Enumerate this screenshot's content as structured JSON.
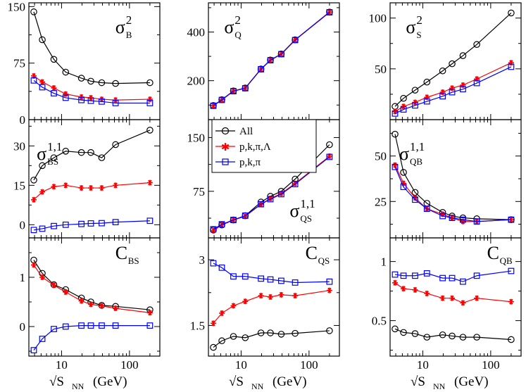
{
  "figure": {
    "xlabel_prefix": "√S",
    "xlabel_sub": "NN",
    "xlabel_unit": "(GeV)"
  },
  "legend": {
    "items": [
      {
        "label": "All",
        "color": "#000000",
        "marker": "circle"
      },
      {
        "label": "p,k,π,Λ",
        "color": "#ff0000",
        "marker": "star"
      },
      {
        "label": "p,k,π",
        "color": "#0000ff",
        "marker": "square"
      }
    ]
  },
  "chart_data": [
    {
      "type": "line",
      "id": "sigma2B",
      "title": "σ²_B",
      "label_main": "σ",
      "label_sub": "B",
      "label_sup": "2",
      "xscale": "log",
      "xlim": [
        3.3,
        280
      ],
      "ylim": [
        0,
        155
      ],
      "xticks": [
        10,
        100
      ],
      "yticks": [
        0,
        75,
        150
      ],
      "x": [
        3.9,
        5.2,
        7.7,
        11.5,
        19.6,
        27,
        39,
        62.4,
        200
      ],
      "series": [
        {
          "name": "All",
          "values": [
            143,
            106,
            80,
            63,
            55,
            51,
            49,
            48,
            49
          ]
        },
        {
          "name": "p,k,π,Λ",
          "values": [
            58,
            50,
            42,
            34,
            30,
            29,
            27,
            26,
            27
          ]
        },
        {
          "name": "p,k,π",
          "values": [
            52,
            43,
            35,
            29,
            26,
            25,
            24,
            22,
            22
          ]
        }
      ]
    },
    {
      "type": "line",
      "id": "sigma2Q",
      "title": "σ²_Q",
      "label_main": "σ",
      "label_sub": "Q",
      "label_sup": "2",
      "xscale": "log",
      "xlim": [
        3.3,
        280
      ],
      "ylim": [
        40,
        520
      ],
      "xticks": [
        10,
        100
      ],
      "yticks": [
        200,
        400
      ],
      "x": [
        3.9,
        5.2,
        7.7,
        11.5,
        19.6,
        27,
        39,
        62.4,
        200
      ],
      "series": [
        {
          "name": "All",
          "values": [
            98,
            122,
            158,
            170,
            248,
            285,
            310,
            368,
            482
          ]
        },
        {
          "name": "p,k,π,Λ",
          "values": [
            98,
            122,
            158,
            170,
            248,
            285,
            310,
            368,
            482
          ]
        },
        {
          "name": "p,k,π",
          "values": [
            97,
            121,
            157,
            169,
            247,
            284,
            309,
            367,
            481
          ]
        }
      ]
    },
    {
      "type": "line",
      "id": "sigma2S",
      "title": "σ²_S",
      "label_main": "σ",
      "label_sub": "S",
      "label_sup": "2",
      "xscale": "log",
      "xlim": [
        3.3,
        280
      ],
      "ylim": [
        0,
        115
      ],
      "xticks": [
        10,
        100
      ],
      "yticks": [
        50,
        100
      ],
      "x": [
        3.9,
        5.2,
        7.7,
        11.5,
        19.6,
        27,
        39,
        62.4,
        200
      ],
      "series": [
        {
          "name": "All",
          "values": [
            13,
            21,
            29,
            37,
            48,
            55,
            63,
            74,
            105
          ]
        },
        {
          "name": "p,k,π,Λ",
          "values": [
            8,
            13,
            17,
            22,
            27,
            31,
            34,
            40,
            56
          ]
        },
        {
          "name": "p,k,π",
          "values": [
            6,
            10,
            14,
            18,
            23,
            27,
            30,
            36,
            52
          ]
        }
      ]
    },
    {
      "type": "line",
      "id": "sigma11BS",
      "title": "σ^{1,1}_BS",
      "label_main": "σ",
      "label_sub": "BS",
      "label_sup": "1,1",
      "xscale": "log",
      "xlim": [
        3.3,
        280
      ],
      "ylim": [
        -5,
        40
      ],
      "xticks": [
        10,
        100
      ],
      "yticks": [
        0,
        15,
        30
      ],
      "x": [
        3.9,
        5.2,
        7.7,
        11.5,
        19.6,
        27,
        39,
        62.4,
        200
      ],
      "series": [
        {
          "name": "All",
          "values": [
            17,
            22.5,
            25.5,
            28,
            27.5,
            27.5,
            25.5,
            30.5,
            36
          ]
        },
        {
          "name": "p,k,π,Λ",
          "values": [
            9.5,
            12.5,
            14.5,
            15,
            14,
            14,
            14,
            15,
            16
          ]
        },
        {
          "name": "p,k,π",
          "values": [
            -2,
            -1.5,
            -0.5,
            0,
            0.3,
            0.5,
            0.6,
            1,
            1.5
          ]
        }
      ]
    },
    {
      "type": "line",
      "id": "sigma11QS",
      "title": "σ^{1,1}_QS",
      "label_main": "σ",
      "label_sub": "QS",
      "label_sup": "1,1",
      "xscale": "log",
      "xlim": [
        3.3,
        280
      ],
      "ylim": [
        10,
        175
      ],
      "xticks": [
        10,
        100
      ],
      "yticks": [
        75,
        150
      ],
      "x": [
        3.9,
        5.2,
        7.7,
        11.5,
        19.6,
        27,
        39,
        62.4,
        200
      ],
      "series": [
        {
          "name": "All",
          "values": [
            21,
            28,
            35,
            41,
            60,
            68,
            75,
            92,
            140
          ]
        },
        {
          "name": "p,k,π,Λ",
          "values": [
            20,
            28,
            35,
            40,
            57,
            65,
            72,
            86,
            124
          ]
        },
        {
          "name": "p,k,π",
          "values": [
            22,
            29,
            35,
            41,
            57,
            64,
            71,
            85,
            123
          ]
        }
      ]
    },
    {
      "type": "line",
      "id": "sigma11QB",
      "title": "σ^{1,1}_QB",
      "label_main": "σ",
      "label_sub": "QB",
      "label_sup": "1,1",
      "xscale": "log",
      "xlim": [
        3.3,
        280
      ],
      "ylim": [
        5,
        70
      ],
      "xticks": [
        10,
        100
      ],
      "yticks": [
        25,
        50
      ],
      "x": [
        3.9,
        5.2,
        7.7,
        11.5,
        19.6,
        27,
        39,
        62.4,
        200
      ],
      "series": [
        {
          "name": "All",
          "values": [
            62,
            41,
            30,
            24,
            19,
            17,
            16,
            15.5,
            15
          ]
        },
        {
          "name": "p,k,π,Λ",
          "values": [
            45,
            35,
            27,
            21,
            18,
            16,
            14,
            14,
            15
          ]
        },
        {
          "name": "p,k,π",
          "values": [
            44,
            33,
            26,
            21,
            17,
            16,
            15,
            14,
            15
          ]
        }
      ]
    },
    {
      "type": "line",
      "id": "CBS",
      "title": "C_BS",
      "label_main": "C",
      "label_sub": "BS",
      "label_sup": "",
      "xscale": "log",
      "xlim": [
        3.3,
        280
      ],
      "ylim": [
        -0.6,
        1.8
      ],
      "xticks": [
        10,
        100
      ],
      "yticks": [
        0,
        1
      ],
      "x": [
        3.9,
        5.2,
        7.7,
        11.5,
        19.6,
        27,
        39,
        62.4,
        200
      ],
      "series": [
        {
          "name": "All",
          "values": [
            1.35,
            1.08,
            0.85,
            0.75,
            0.58,
            0.5,
            0.43,
            0.41,
            0.34
          ]
        },
        {
          "name": "p,k,π,Λ",
          "values": [
            1.25,
            1.0,
            0.84,
            0.7,
            0.52,
            0.45,
            0.42,
            0.37,
            0.28
          ]
        },
        {
          "name": "p,k,π",
          "values": [
            -0.48,
            -0.25,
            -0.05,
            0.0,
            0.02,
            0.02,
            0.02,
            0.02,
            0.02
          ]
        }
      ]
    },
    {
      "type": "line",
      "id": "CQS",
      "title": "C_QS",
      "label_main": "C",
      "label_sub": "QS",
      "label_sup": "",
      "xscale": "log",
      "xlim": [
        3.3,
        280
      ],
      "ylim": [
        0.8,
        3.5
      ],
      "xticks": [
        10,
        100
      ],
      "yticks": [
        1.5,
        3
      ],
      "x": [
        3.9,
        5.2,
        7.7,
        11.5,
        19.6,
        27,
        39,
        62.4,
        200
      ],
      "series": [
        {
          "name": "All",
          "values": [
            1.0,
            1.15,
            1.25,
            1.22,
            1.33,
            1.33,
            1.3,
            1.32,
            1.38
          ]
        },
        {
          "name": "p,k,π,Λ",
          "values": [
            1.55,
            1.78,
            1.95,
            2.05,
            2.18,
            2.15,
            2.2,
            2.18,
            2.3
          ]
        },
        {
          "name": "p,k,π",
          "values": [
            2.92,
            2.82,
            2.62,
            2.62,
            2.57,
            2.55,
            2.52,
            2.48,
            2.5
          ]
        }
      ]
    },
    {
      "type": "line",
      "id": "CQB",
      "title": "C_QB",
      "label_main": "C",
      "label_sub": "QB",
      "label_sup": "",
      "xscale": "log",
      "xlim": [
        3.3,
        280
      ],
      "ylim": [
        0.2,
        1.2
      ],
      "xticks": [
        10,
        100
      ],
      "yticks": [
        0.5,
        1
      ],
      "x": [
        3.9,
        5.2,
        7.7,
        11.5,
        19.6,
        27,
        39,
        62.4,
        200
      ],
      "series": [
        {
          "name": "All",
          "values": [
            0.43,
            0.4,
            0.39,
            0.36,
            0.38,
            0.37,
            0.36,
            0.36,
            0.34
          ]
        },
        {
          "name": "p,k,π,Λ",
          "values": [
            0.82,
            0.77,
            0.76,
            0.73,
            0.69,
            0.69,
            0.65,
            0.69,
            0.66
          ]
        },
        {
          "name": "p,k,π",
          "values": [
            0.89,
            0.88,
            0.88,
            0.9,
            0.86,
            0.86,
            0.83,
            0.88,
            0.92
          ]
        }
      ]
    }
  ]
}
